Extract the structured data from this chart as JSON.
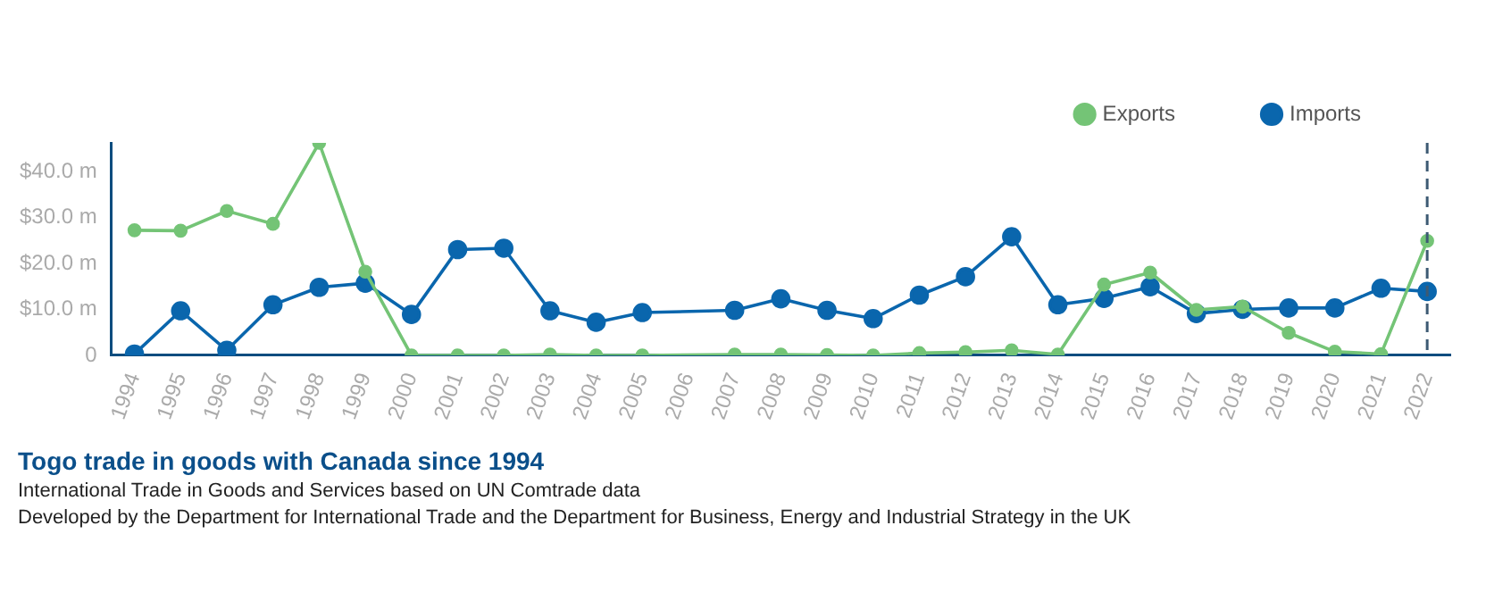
{
  "chart_data": {
    "type": "line",
    "title": "Togo trade in goods with Canada since 1994",
    "subtitle": "International Trade in Goods and Services based on UN Comtrade data",
    "annotations": [
      "Developed by the Department for International Trade and the Department for Business, Energy and Industrial Strategy in the UK"
    ],
    "categories": [
      "1994",
      "1995",
      "1996",
      "1997",
      "1998",
      "1999",
      "2000",
      "2001",
      "2002",
      "2003",
      "2004",
      "2005",
      "2006",
      "2007",
      "2008",
      "2009",
      "2010",
      "2011",
      "2012",
      "2013",
      "2014",
      "2015",
      "2016",
      "2017",
      "2018",
      "2019",
      "2020",
      "2021",
      "2022"
    ],
    "series": [
      {
        "name": "Imports",
        "color": "#0a66ad",
        "values": [
          0.3,
          9.7,
          1.1,
          11.0,
          14.8,
          15.7,
          8.9,
          23.0,
          23.3,
          9.7,
          7.2,
          9.3,
          null,
          9.8,
          12.3,
          9.8,
          8.0,
          13.1,
          17.1,
          25.8,
          11.0,
          12.4,
          14.9,
          9.1,
          10.0,
          10.3,
          10.3,
          14.6,
          13.9
        ]
      },
      {
        "name": "Exports",
        "color": "#74c476",
        "values": [
          27.2,
          27.1,
          31.4,
          28.6,
          46.2,
          18.2,
          0,
          0,
          0,
          0.2,
          0,
          0,
          null,
          0.2,
          0.2,
          0.1,
          0,
          0.5,
          0.7,
          1.1,
          0.2,
          15.4,
          18.0,
          9.9,
          10.6,
          4.9,
          0.8,
          0.3,
          24.9
        ]
      }
    ],
    "ylim": [
      0,
      46.2
    ],
    "yticks": [
      {
        "value": 0,
        "label": "0"
      },
      {
        "value": 10,
        "label": "$10.0 m"
      },
      {
        "value": 20,
        "label": "$20.0 m"
      },
      {
        "value": 30,
        "label": "$30.0 m"
      },
      {
        "value": 40,
        "label": "$40.0 m"
      }
    ],
    "ref_lines": [
      {
        "axis": "x",
        "value": "2022",
        "color": "#3d5a73",
        "line_style": "dashed"
      }
    ],
    "grid": false,
    "legend": "top right",
    "marker": "circle",
    "line_style": "solid"
  }
}
